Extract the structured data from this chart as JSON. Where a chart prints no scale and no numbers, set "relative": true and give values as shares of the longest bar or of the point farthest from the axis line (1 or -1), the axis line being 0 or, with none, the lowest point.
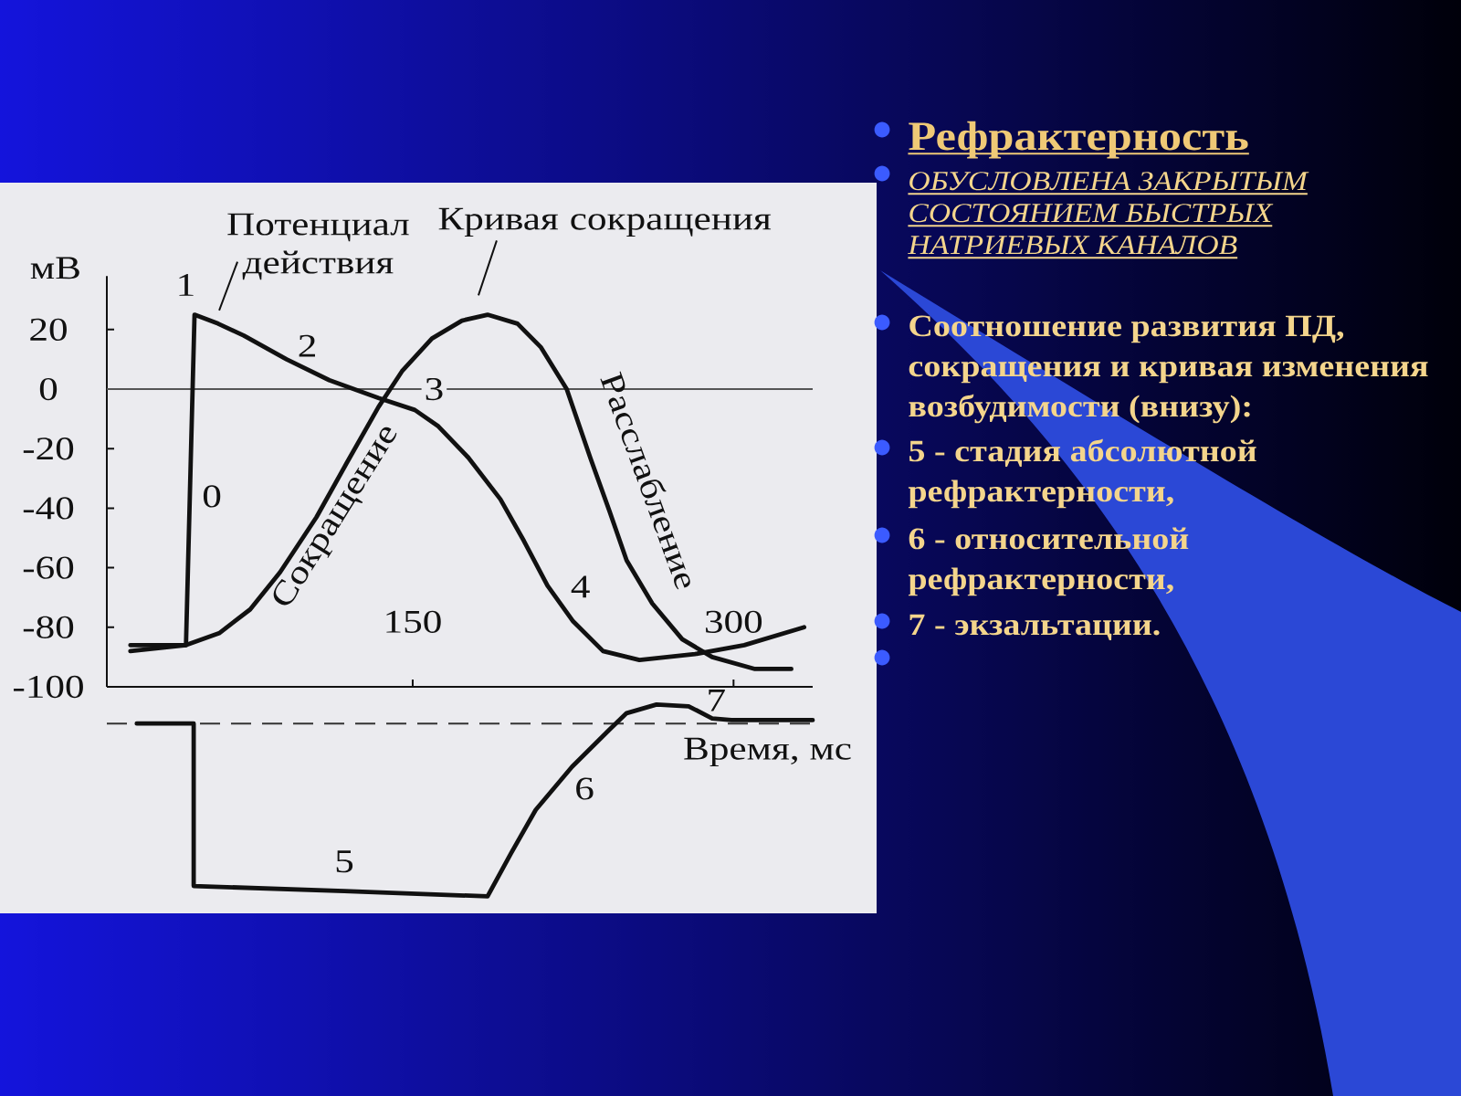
{
  "chart_data": [
    {
      "type": "line",
      "ylabel": "мВ",
      "xlim": [
        7,
        337
      ],
      "xticks": [
        150,
        300
      ],
      "ylim": [
        -100,
        38
      ],
      "yticks": [
        20,
        0,
        -20,
        -40,
        -60,
        -80,
        -100
      ],
      "series": [
        {
          "name": "Потенциал действия",
          "color": "#111111",
          "x": [
            18,
            44,
            45.8,
            48,
            59,
            71,
            91,
            111,
            134,
            151,
            162,
            176,
            191,
            202,
            213,
            225,
            239,
            256,
            282,
            305,
            333
          ],
          "values": [
            -86,
            -86,
            -36,
            25,
            22,
            18,
            10,
            3,
            -3,
            -7,
            -12.5,
            -23,
            -37,
            -51,
            -66,
            -78,
            -88,
            -91,
            -89,
            -86,
            -80
          ]
        },
        {
          "name": "Кривая сокращения",
          "color": "#111111",
          "x": [
            18,
            44,
            59.5,
            74,
            88,
            105,
            119,
            134,
            145,
            159,
            173,
            185,
            199,
            210,
            222,
            233,
            242,
            250,
            262,
            276,
            290,
            310,
            327
          ],
          "values": [
            -88,
            -86,
            -82,
            -74,
            -61.5,
            -43,
            -25,
            -6,
            6,
            17,
            23,
            25,
            22,
            14,
            0,
            -23,
            -41,
            -57.5,
            -72,
            -84,
            -90,
            -94,
            -94
          ]
        }
      ],
      "ref_lines": [
        {
          "axis": "y",
          "value": 0,
          "color": "#555555"
        }
      ],
      "annotations": [
        {
          "text": "1",
          "x": 48,
          "y": 25
        },
        {
          "text": "2",
          "x": 91,
          "y": 10
        },
        {
          "text": "0",
          "x": 45.8,
          "y": -36
        },
        {
          "text": "3",
          "x": 160,
          "y": 0
        },
        {
          "text": "4",
          "x": 225,
          "y": -78
        },
        {
          "text": "Сокращение",
          "x": 105,
          "y": -43
        },
        {
          "text": "Расслабление",
          "x": 242,
          "y": -41
        }
      ]
    },
    {
      "type": "line",
      "relative": true,
      "tick_labels": false,
      "xlim": [
        7,
        337
      ],
      "xlabel": "Время, мс",
      "series": [
        {
          "color": "#111111",
          "x": [
            21,
            47.6,
            47.6,
            118,
            185,
            196,
            207.5,
            224.5,
            241.6,
            250,
            264,
            279,
            290,
            299,
            337
          ],
          "values": [
            0,
            0,
            -0.94,
            -0.97,
            -1,
            -0.75,
            -0.5,
            -0.25,
            -0.04,
            0.06,
            0.11,
            0.1,
            0.03,
            0.02,
            0.02
          ]
        }
      ],
      "ref_lines": [
        {
          "axis": "y",
          "value": 0,
          "line_style": "dashed",
          "color": "#333333"
        }
      ],
      "annotations": [
        {
          "text": "5",
          "x": 118,
          "y": -0.97
        },
        {
          "text": "6",
          "x": 224.5,
          "y": -0.25
        },
        {
          "text": "7",
          "x": 290,
          "y": 0.03
        }
      ]
    },
    {
      "type": "other",
      "title": "Рефрактерность",
      "subtitle": "ОБУСЛОВЛЕНА ЗАКРЫТЫМ СОСТОЯНИЕМ БЫСТРЫХ НАТРИЕВЫХ КАНАЛОВ",
      "annotations": [
        "Соотношение развития ПД, сокращения и кривая изменения возбудимости (внизу):",
        "5 - стадия абсолютной рефрактерности,",
        "6 - относительной рефрактерности,",
        "7 - экзальтации."
      ]
    }
  ]
}
